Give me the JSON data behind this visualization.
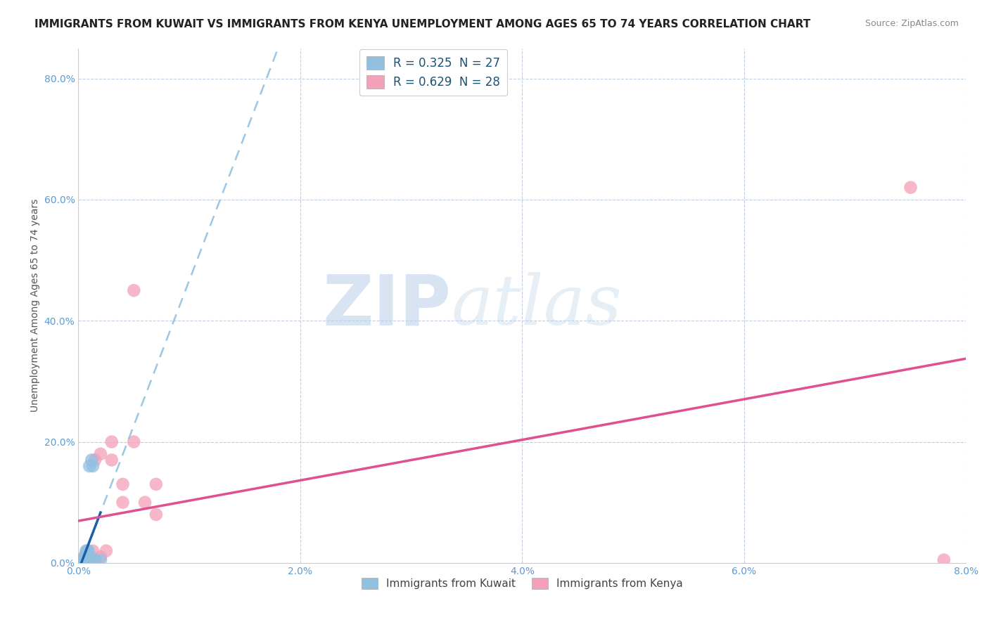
{
  "title": "IMMIGRANTS FROM KUWAIT VS IMMIGRANTS FROM KENYA UNEMPLOYMENT AMONG AGES 65 TO 74 YEARS CORRELATION CHART",
  "source": "Source: ZipAtlas.com",
  "xlabel_ticks": [
    "0.0%",
    "2.0%",
    "4.0%",
    "6.0%",
    "8.0%"
  ],
  "ylabel_ticks": [
    "0.0%",
    "20.0%",
    "40.0%",
    "60.0%",
    "80.0%"
  ],
  "xlim": [
    0.0,
    0.08
  ],
  "ylim": [
    0.0,
    0.85
  ],
  "ylabel": "Unemployment Among Ages 65 to 74 years",
  "legend_labels": [
    "R = 0.325  N = 27",
    "R = 0.629  N = 28"
  ],
  "legend_xlabel": [
    "Immigrants from Kuwait",
    "Immigrants from Kenya"
  ],
  "kuwait_color": "#92c0e0",
  "kenya_color": "#f4a0b8",
  "kuwait_line_color": "#1a5fa8",
  "kenya_line_color": "#e05090",
  "kuwait_dashed_color": "#92c0e0",
  "watermark_zip": "ZIP",
  "watermark_atlas": "atlas",
  "background_color": "#ffffff",
  "grid_color": "#c0cfe0",
  "title_fontsize": 11,
  "axis_label_fontsize": 10,
  "tick_fontsize": 10,
  "kuwait_x": [
    0.0002,
    0.0003,
    0.0004,
    0.0004,
    0.0005,
    0.0005,
    0.0005,
    0.0006,
    0.0006,
    0.0006,
    0.0006,
    0.0007,
    0.0007,
    0.0007,
    0.0007,
    0.0008,
    0.0008,
    0.0008,
    0.0009,
    0.0009,
    0.001,
    0.001,
    0.001,
    0.0012,
    0.0013,
    0.0015,
    0.002
  ],
  "kuwait_y": [
    0.005,
    0.003,
    0.002,
    0.004,
    0.002,
    0.003,
    0.005,
    0.003,
    0.005,
    0.007,
    0.01,
    0.005,
    0.01,
    0.015,
    0.02,
    0.005,
    0.01,
    0.02,
    0.01,
    0.02,
    0.005,
    0.01,
    0.16,
    0.17,
    0.16,
    0.005,
    0.005
  ],
  "kenya_x": [
    0.0002,
    0.0003,
    0.0004,
    0.0005,
    0.0005,
    0.0006,
    0.0007,
    0.0008,
    0.0009,
    0.001,
    0.0012,
    0.0013,
    0.0015,
    0.0015,
    0.002,
    0.002,
    0.0025,
    0.003,
    0.003,
    0.004,
    0.004,
    0.005,
    0.005,
    0.006,
    0.007,
    0.007,
    0.075,
    0.078
  ],
  "kenya_y": [
    0.005,
    0.005,
    0.003,
    0.005,
    0.01,
    0.005,
    0.01,
    0.005,
    0.01,
    0.005,
    0.01,
    0.02,
    0.005,
    0.17,
    0.01,
    0.18,
    0.02,
    0.17,
    0.2,
    0.1,
    0.13,
    0.45,
    0.2,
    0.1,
    0.08,
    0.13,
    0.62,
    0.005
  ]
}
